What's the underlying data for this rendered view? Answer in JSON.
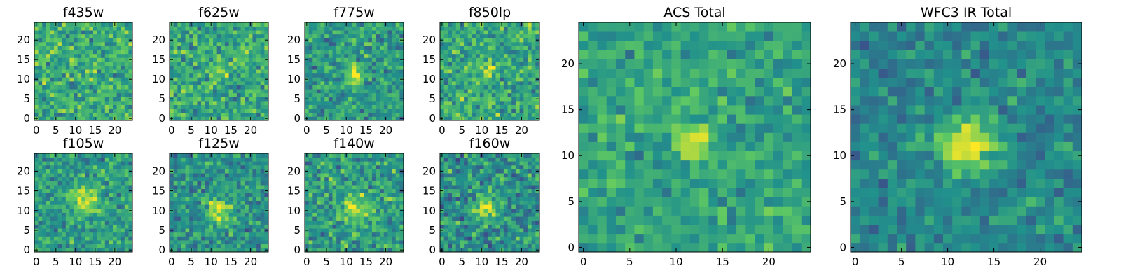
{
  "figure": {
    "colormap": "viridis",
    "colormap_stops": [
      "#440154",
      "#3b528b",
      "#21918c",
      "#5ec962",
      "#fde725"
    ]
  },
  "chart_data": [
    {
      "type": "heatmap",
      "title": "f435w",
      "xlim": [
        0,
        24
      ],
      "ylim": [
        0,
        24
      ],
      "xticks": [
        0,
        5,
        10,
        15,
        20
      ],
      "yticks": [
        0,
        5,
        10,
        15,
        20
      ],
      "grid": false,
      "grid_size": [
        25,
        25
      ],
      "peak": {
        "x": 12,
        "y": 12,
        "amplitude": 0.0,
        "sigma": 2.0
      },
      "background_level": 0.62,
      "noise": 0.17
    },
    {
      "type": "heatmap",
      "title": "f625w",
      "xlim": [
        0,
        24
      ],
      "ylim": [
        0,
        24
      ],
      "xticks": [
        0,
        5,
        10,
        15,
        20
      ],
      "yticks": [
        0,
        5,
        10,
        15,
        20
      ],
      "grid": false,
      "grid_size": [
        25,
        25
      ],
      "peak": {
        "x": 12,
        "y": 12,
        "amplitude": 0.25,
        "sigma": 1.6
      },
      "background_level": 0.6,
      "noise": 0.17
    },
    {
      "type": "heatmap",
      "title": "f775w",
      "xlim": [
        0,
        24
      ],
      "ylim": [
        0,
        24
      ],
      "xticks": [
        0,
        5,
        10,
        15,
        20
      ],
      "yticks": [
        0,
        5,
        10,
        15,
        20
      ],
      "grid": false,
      "grid_size": [
        25,
        25
      ],
      "peak": {
        "x": 12,
        "y": 11,
        "amplitude": 0.45,
        "sigma": 1.4
      },
      "background_level": 0.55,
      "noise": 0.16
    },
    {
      "type": "heatmap",
      "title": "f850lp",
      "xlim": [
        0,
        24
      ],
      "ylim": [
        0,
        24
      ],
      "xticks": [
        0,
        5,
        10,
        15,
        20
      ],
      "yticks": [
        0,
        5,
        10,
        15,
        20
      ],
      "grid": false,
      "grid_size": [
        25,
        25
      ],
      "peak": {
        "x": 12,
        "y": 12,
        "amplitude": 0.3,
        "sigma": 1.5
      },
      "background_level": 0.6,
      "noise": 0.18
    },
    {
      "type": "heatmap",
      "title": "f105w",
      "xlim": [
        0,
        24
      ],
      "ylim": [
        0,
        24
      ],
      "xticks": [
        0,
        5,
        10,
        15,
        20
      ],
      "yticks": [
        0,
        5,
        10,
        15,
        20
      ],
      "grid": false,
      "grid_size": [
        25,
        25
      ],
      "peak": {
        "x": 12,
        "y": 13,
        "amplitude": 0.4,
        "sigma": 2.6
      },
      "background_level": 0.55,
      "noise": 0.15
    },
    {
      "type": "heatmap",
      "title": "f125w",
      "xlim": [
        0,
        24
      ],
      "ylim": [
        0,
        24
      ],
      "xticks": [
        0,
        5,
        10,
        15,
        20
      ],
      "yticks": [
        0,
        5,
        10,
        15,
        20
      ],
      "grid": false,
      "grid_size": [
        25,
        25
      ],
      "peak": {
        "x": 12,
        "y": 10,
        "amplitude": 0.45,
        "sigma": 2.2
      },
      "background_level": 0.5,
      "noise": 0.15
    },
    {
      "type": "heatmap",
      "title": "f140w",
      "xlim": [
        0,
        24
      ],
      "ylim": [
        0,
        24
      ],
      "xticks": [
        0,
        5,
        10,
        15,
        20
      ],
      "yticks": [
        0,
        5,
        10,
        15,
        20
      ],
      "grid": false,
      "grid_size": [
        25,
        25
      ],
      "peak": {
        "x": 12,
        "y": 11,
        "amplitude": 0.35,
        "sigma": 2.4
      },
      "background_level": 0.55,
      "noise": 0.17
    },
    {
      "type": "heatmap",
      "title": "f160w",
      "xlim": [
        0,
        24
      ],
      "ylim": [
        0,
        24
      ],
      "xticks": [
        0,
        5,
        10,
        15,
        20
      ],
      "yticks": [
        0,
        5,
        10,
        15,
        20
      ],
      "grid": false,
      "grid_size": [
        25,
        25
      ],
      "peak": {
        "x": 11,
        "y": 11,
        "amplitude": 0.45,
        "sigma": 2.0
      },
      "background_level": 0.5,
      "noise": 0.17
    },
    {
      "type": "heatmap",
      "title": "ACS Total",
      "xlim": [
        0,
        24
      ],
      "ylim": [
        0,
        24
      ],
      "xticks": [
        0,
        5,
        10,
        15,
        20
      ],
      "yticks": [
        0,
        5,
        10,
        15,
        20
      ],
      "grid": false,
      "grid_size": [
        25,
        25
      ],
      "peak": {
        "x": 12,
        "y": 11.5,
        "amplitude": 0.4,
        "sigma": 1.3
      },
      "background_level": 0.58,
      "noise": 0.12
    },
    {
      "type": "heatmap",
      "title": "WFC3 IR Total",
      "xlim": [
        0,
        24
      ],
      "ylim": [
        0,
        24
      ],
      "xticks": [
        0,
        5,
        10,
        15,
        20
      ],
      "yticks": [
        0,
        5,
        10,
        15,
        20
      ],
      "grid": false,
      "grid_size": [
        25,
        25
      ],
      "peak": {
        "x": 12,
        "y": 11,
        "amplitude": 0.55,
        "sigma": 2.0
      },
      "background_level": 0.47,
      "noise": 0.12
    }
  ]
}
